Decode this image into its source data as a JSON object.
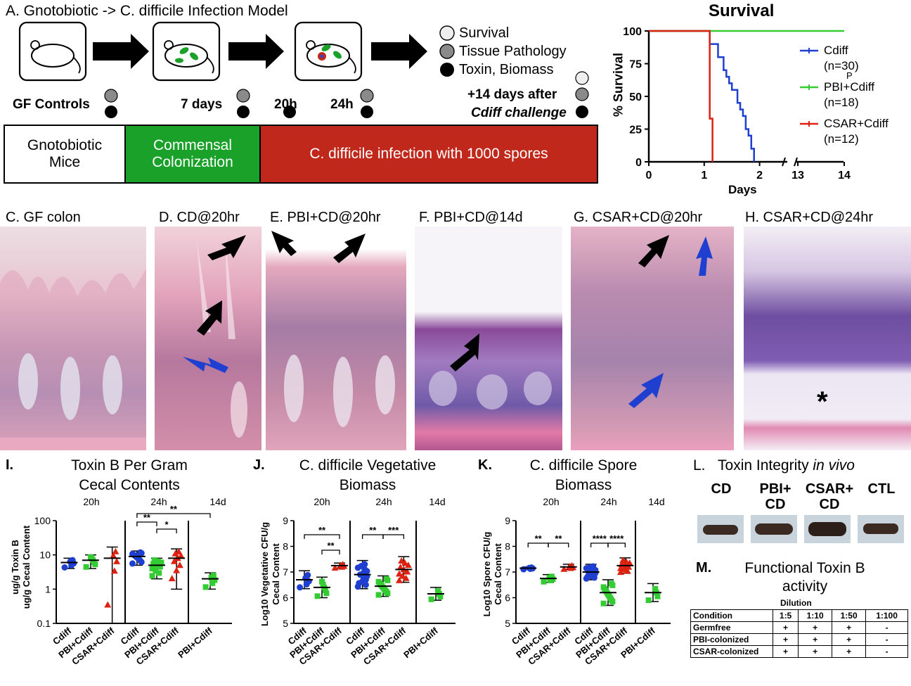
{
  "panelA": {
    "title": "A. Gnotobiotic -> C. difficile  Infection Model",
    "legend": [
      {
        "label": "Survival",
        "color": "#eeeeee"
      },
      {
        "label": "Tissue Pathology",
        "color": "#8a8a8a"
      },
      {
        "label": "Toxin, Biomass",
        "color": "#000000"
      }
    ],
    "timepoints": [
      "GF Controls",
      "7 days",
      "20h",
      "24h",
      "+14 days after",
      "Cdiff challenge"
    ],
    "bar": [
      {
        "line1": "Gnotobiotic",
        "line2": "Mice",
        "color": "#ffffff",
        "text": "#000000"
      },
      {
        "line1": "Commensal",
        "line2": "Colonization",
        "color": "#1aa12a",
        "text": "#ffffff"
      },
      {
        "line1": "C. difficile infection with 1000 spores",
        "line2": "",
        "color": "#c0281c",
        "text": "#ffffff"
      }
    ]
  },
  "panelB": {
    "title": "Survival",
    "ylabel": "% Survival",
    "xlabel": "Days",
    "yticks": [
      "100",
      "75",
      "50",
      "25",
      "0"
    ],
    "xticks": [
      "0",
      "1",
      "2",
      "13",
      "14"
    ],
    "series": [
      {
        "name": "Cdiff",
        "n": "(n=30)",
        "color": "#1f3fd1"
      },
      {
        "name": "PBI+Cdiff",
        "n": "(n=18)",
        "color": "#33cc33"
      },
      {
        "name": "CSAR+Cdiff",
        "n": "(n=12)",
        "color": "#dd2211"
      }
    ],
    "stray": "P"
  },
  "histology": [
    {
      "label": "C. GF colon"
    },
    {
      "label": "D. CD@20hr"
    },
    {
      "label": "E. PBI+CD@20hr"
    },
    {
      "label": "F. PBI+CD@14d"
    },
    {
      "label": "G. CSAR+CD@20hr"
    },
    {
      "label": "H. CSAR+CD@24hr"
    }
  ],
  "panelI": {
    "letter": "I.",
    "title1": "Toxin B Per Gram",
    "title2": "Cecal Contents",
    "ylabel1": "ug/g Toxin B",
    "ylabel2": "ug/g Cecal Content",
    "yticks": [
      "100",
      "10",
      "1",
      "0.1"
    ],
    "groups": [
      "20h",
      "24h",
      "14d"
    ],
    "xcats": [
      "Cdiff",
      "PBI+Cdiff",
      "CSAR+Cdiff",
      "Cdiff",
      "PBI+Cdiff",
      "CSAR+Cdiff",
      "PBI+Cdiff"
    ],
    "sig": [
      "**",
      "*",
      "**"
    ]
  },
  "panelJ": {
    "letter": "J.",
    "title1": "C. difficile Vegetative",
    "title2": "Biomass",
    "ylabel1": "Log10 Vegetative CFU/g",
    "ylabel2": "Cecal Content",
    "yticks": [
      "9",
      "8",
      "7",
      "6",
      "5"
    ],
    "groups": [
      "20h",
      "24h",
      "14d"
    ],
    "xcats": [
      "Cdiff",
      "PBI+Cdiff",
      "CSAR+Cdiff",
      "Cdiff",
      "PBI+Cdiff",
      "CSAR+Cdiff",
      "PBI+Cdiff"
    ],
    "sig": [
      "**",
      "**",
      "**",
      "***"
    ]
  },
  "panelK": {
    "letter": "K.",
    "title1": "C. difficile Spore",
    "title2": "Biomass",
    "ylabel1": "Log10 Spore CFU/g",
    "ylabel2": "Cecal Content",
    "yticks": [
      "9",
      "8",
      "7",
      "6",
      "5"
    ],
    "groups": [
      "20h",
      "24h",
      "14d"
    ],
    "xcats": [
      "Cdiff",
      "PBI+Cdiff",
      "CSAR+Cdiff",
      "Cdiff",
      "PBI+Cdiff",
      "CSAR+Cdiff",
      "PBI+Cdiff"
    ],
    "sig": [
      "**",
      "**",
      "****",
      "****"
    ]
  },
  "panelL": {
    "title": "L.   Toxin Integrity in vivo",
    "lanes": [
      {
        "line1": "CD",
        "line2": ""
      },
      {
        "line1": "PBI+",
        "line2": "CD"
      },
      {
        "line1": "CSAR+",
        "line2": "CD"
      },
      {
        "line1": "CTL",
        "line2": ""
      }
    ]
  },
  "panelM": {
    "letter": "M.",
    "title1": "Functional Toxin B",
    "title2": "activity",
    "dilution": "Dilution",
    "header": [
      "Condition",
      "1:5",
      "1:10",
      "1:50",
      "1:100"
    ],
    "rows": [
      [
        "Germfree",
        "+",
        "+",
        "+",
        "-"
      ],
      [
        "PBI-colonized",
        "+",
        "+",
        "+",
        "-"
      ],
      [
        "CSAR-colonized",
        "+",
        "+",
        "+",
        "-"
      ]
    ]
  },
  "chart_data": [
    {
      "type": "line",
      "title": "Survival",
      "xlabel": "Days",
      "ylabel": "% Survival",
      "ylim": [
        0,
        100
      ],
      "xlim": [
        0,
        14
      ],
      "series": [
        {
          "name": "Cdiff",
          "x": [
            0,
            1,
            1.1,
            1.25,
            1.35,
            1.4,
            1.45,
            1.5,
            1.6,
            1.65,
            1.7,
            1.75,
            1.8,
            1.85,
            1.9
          ],
          "y": [
            100,
            100,
            90,
            80,
            70,
            65,
            60,
            55,
            45,
            40,
            35,
            25,
            20,
            10,
            0
          ]
        },
        {
          "name": "PBI+Cdiff",
          "x": [
            0,
            14
          ],
          "y": [
            100,
            100
          ]
        },
        {
          "name": "CSAR+Cdiff",
          "x": [
            0,
            1,
            1.1,
            1.15
          ],
          "y": [
            100,
            100,
            33,
            0
          ]
        }
      ]
    },
    {
      "type": "scatter",
      "title": "Toxin B Per Gram Cecal Contents",
      "ylabel": "ug/g Toxin B ug/g Cecal Content",
      "yscale": "log",
      "ylim": [
        0.1,
        100
      ],
      "categories": [
        "Cdiff 20h",
        "PBI+Cdiff 20h",
        "CSAR+Cdiff 20h",
        "Cdiff 24h",
        "PBI+Cdiff 24h",
        "CSAR+Cdiff 24h",
        "PBI+Cdiff 14d"
      ],
      "series": [
        {
          "name": "Cdiff",
          "color": "#1f3fd1",
          "groups": [
            [
              5,
              6,
              7,
              8,
              9
            ],
            [],
            [],
            [
              6,
              7,
              8,
              9,
              10,
              11,
              12,
              14,
              18,
              9,
              8,
              10
            ],
            [],
            [],
            []
          ]
        },
        {
          "name": "PBI+Cdiff",
          "color": "#33cc33",
          "groups": [
            [],
            [
              4,
              5,
              7,
              9,
              10,
              12
            ],
            [],
            [],
            [
              2,
              3,
              4,
              5,
              6,
              8,
              10,
              12,
              3,
              4
            ],
            [],
            [
              1.2,
              1.5,
              2,
              2.5,
              3
            ]
          ]
        },
        {
          "name": "CSAR+Cdiff",
          "color": "#dd2211",
          "groups": [
            [],
            [],
            [
              2,
              3,
              8,
              12,
              20
            ],
            [],
            [],
            [
              3,
              5,
              8,
              10,
              14,
              18,
              22,
              4
            ],
            []
          ]
        }
      ],
      "means": [
        6,
        7,
        8,
        9,
        5,
        8,
        2
      ]
    },
    {
      "type": "scatter",
      "title": "C. difficile Vegetative Biomass",
      "ylabel": "Log10 Vegetative CFU/g Cecal Content",
      "ylim": [
        5,
        9
      ],
      "categories": [
        "Cdiff 20h",
        "PBI+Cdiff 20h",
        "CSAR+Cdiff 20h",
        "Cdiff 24h",
        "PBI+Cdiff 24h",
        "CSAR+Cdiff 24h",
        "PBI+Cdiff 14d"
      ],
      "means": [
        6.7,
        6.4,
        7.25,
        6.9,
        6.45,
        7.1,
        6.15
      ]
    },
    {
      "type": "scatter",
      "title": "C. difficile Spore Biomass",
      "ylabel": "Log10 Spore CFU/g Cecal Content",
      "ylim": [
        5,
        9
      ],
      "categories": [
        "Cdiff 20h",
        "PBI+Cdiff 20h",
        "CSAR+Cdiff 20h",
        "Cdiff 24h",
        "PBI+Cdiff 24h",
        "CSAR+Cdiff 24h",
        "PBI+Cdiff 14d"
      ],
      "means": [
        7.15,
        6.75,
        7.2,
        7.0,
        6.2,
        7.25,
        6.2
      ]
    }
  ]
}
